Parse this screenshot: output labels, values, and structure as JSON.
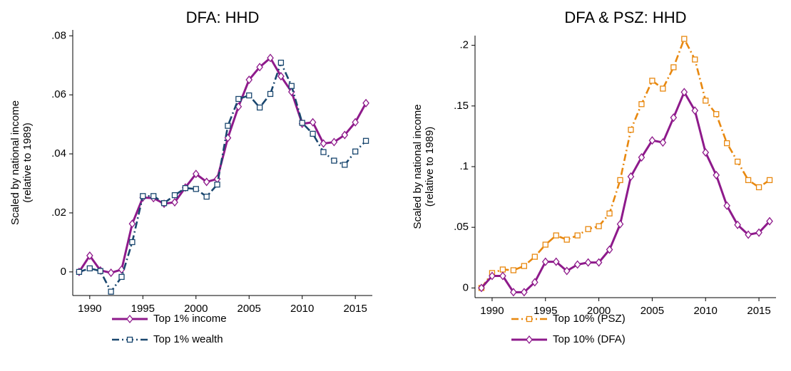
{
  "chart_data": [
    {
      "type": "line",
      "title": "DFA: HHD",
      "ylabel": [
        "Scaled by national income",
        "(relative to 1989)"
      ],
      "x": [
        1989,
        1990,
        1991,
        1992,
        1993,
        1994,
        1995,
        1996,
        1997,
        1998,
        1999,
        2000,
        2001,
        2002,
        2003,
        2004,
        2005,
        2006,
        2007,
        2008,
        2009,
        2010,
        2011,
        2012,
        2013,
        2014,
        2015,
        2016
      ],
      "xlim": [
        1988.4,
        2016.6
      ],
      "xticks": [
        1990,
        1995,
        2000,
        2005,
        2010,
        2015
      ],
      "ylim": [
        -0.008,
        0.082
      ],
      "yticks": [
        0,
        {
          "value": 0.02,
          "label": ".02"
        },
        {
          "value": 0.04,
          "label": ".04"
        },
        {
          "value": 0.06,
          "label": ".06"
        },
        {
          "value": 0.08,
          "label": ".08"
        }
      ],
      "legend": "bottom",
      "series": [
        {
          "name": "Top 1% income",
          "color": "#8e1a8b",
          "dash": "solid",
          "marker": "diamond",
          "values": [
            0,
            0.0055,
            0.0005,
            -0.0003,
            0.0008,
            0.0163,
            0.0252,
            0.025,
            0.0231,
            0.0236,
            0.0286,
            0.0332,
            0.0305,
            0.0315,
            0.0454,
            0.056,
            0.0651,
            0.0694,
            0.0725,
            0.0663,
            0.061,
            0.0502,
            0.0507,
            0.0435,
            0.044,
            0.0464,
            0.0507,
            0.0572
          ]
        },
        {
          "name": "Top 1% wealth",
          "color": "#1a476f",
          "dash": "dashdot",
          "marker": "square",
          "values": [
            0,
            0.0012,
            0.0003,
            -0.0067,
            -0.0017,
            0.0101,
            0.0257,
            0.0257,
            0.0233,
            0.026,
            0.0284,
            0.0281,
            0.0255,
            0.0296,
            0.0495,
            0.0586,
            0.0598,
            0.0557,
            0.0603,
            0.0709,
            0.063,
            0.0505,
            0.0468,
            0.0406,
            0.0377,
            0.0363,
            0.0408,
            0.0444
          ]
        }
      ]
    },
    {
      "type": "line",
      "title": "DFA & PSZ: HHD",
      "ylabel": [
        "Scaled by national income",
        "(relative to 1989)"
      ],
      "x": [
        1989,
        1990,
        1991,
        1992,
        1993,
        1994,
        1995,
        1996,
        1997,
        1998,
        1999,
        2000,
        2001,
        2002,
        2003,
        2004,
        2005,
        2006,
        2007,
        2008,
        2009,
        2010,
        2011,
        2012,
        2013,
        2014,
        2015,
        2016
      ],
      "xlim": [
        1988.4,
        2016.6
      ],
      "xticks": [
        1990,
        1995,
        2000,
        2005,
        2010,
        2015
      ],
      "ylim": [
        -0.008,
        0.208
      ],
      "yticks": [
        0,
        {
          "value": 0.05,
          "label": ".05"
        },
        {
          "value": 0.1,
          "label": ".1"
        },
        {
          "value": 0.15,
          "label": ".15"
        },
        {
          "value": 0.2,
          "label": ".2"
        }
      ],
      "legend": "bottom",
      "series": [
        {
          "name": "Top 10% (PSZ)",
          "color": "#e8880f",
          "dash": "dashdot",
          "marker": "square",
          "values": [
            0,
            0.0123,
            0.0152,
            0.0146,
            0.0181,
            0.0257,
            0.0357,
            0.0433,
            0.0398,
            0.0433,
            0.0485,
            0.0509,
            0.0614,
            0.0889,
            0.1304,
            0.1515,
            0.1708,
            0.1643,
            0.1819,
            0.2053,
            0.1883,
            0.1544,
            0.1433,
            0.1193,
            0.1041,
            0.0889,
            0.083,
            0.0889
          ]
        },
        {
          "name": "Top 10% (DFA)",
          "color": "#8e1a8b",
          "dash": "solid",
          "marker": "diamond",
          "values": [
            0,
            0.0099,
            0.0099,
            -0.0035,
            -0.0035,
            0.0047,
            0.0216,
            0.0216,
            0.014,
            0.0193,
            0.021,
            0.021,
            0.0316,
            0.0526,
            0.0918,
            0.1076,
            0.1216,
            0.1199,
            0.1404,
            0.1614,
            0.1462,
            0.1117,
            0.093,
            0.0678,
            0.052,
            0.0439,
            0.0456,
            0.055
          ]
        }
      ]
    }
  ]
}
